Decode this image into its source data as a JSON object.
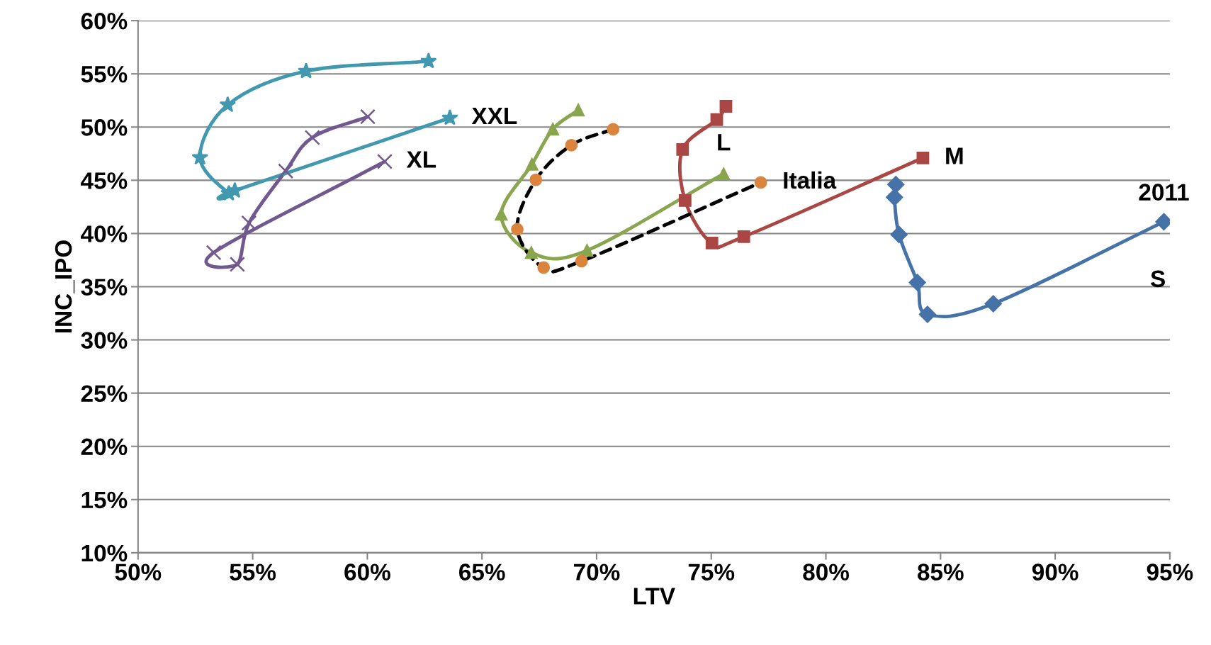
{
  "chart_data": {
    "type": "line",
    "xlabel": "LTV",
    "ylabel": "INC_IPO",
    "xlim": [
      50,
      95
    ],
    "ylim": [
      10,
      60
    ],
    "xticks": [
      {
        "value": 50,
        "label": "50%"
      },
      {
        "value": 55,
        "label": "55%"
      },
      {
        "value": 60,
        "label": "60%"
      },
      {
        "value": 65,
        "label": "65%"
      },
      {
        "value": 70,
        "label": "70%"
      },
      {
        "value": 75,
        "label": "75%"
      },
      {
        "value": 80,
        "label": "80%"
      },
      {
        "value": 85,
        "label": "85%"
      },
      {
        "value": 90,
        "label": "90%"
      },
      {
        "value": 95,
        "label": "95%"
      }
    ],
    "yticks": [
      {
        "value": 10,
        "label": "10%"
      },
      {
        "value": 15,
        "label": "15%"
      },
      {
        "value": 20,
        "label": "20%"
      },
      {
        "value": 25,
        "label": "25%"
      },
      {
        "value": 30,
        "label": "30%"
      },
      {
        "value": 35,
        "label": "35%"
      },
      {
        "value": 40,
        "label": "40%"
      },
      {
        "value": 45,
        "label": "45%"
      },
      {
        "value": 50,
        "label": "50%"
      },
      {
        "value": 55,
        "label": "55%"
      },
      {
        "value": 60,
        "label": "60%"
      }
    ],
    "grid": "y",
    "legend": false,
    "line_style": "solid",
    "series": [
      {
        "name": "S",
        "color": "#4572a7",
        "marker": "diamond",
        "x": [
          83.05,
          82.99,
          83.19,
          83.99,
          84.43,
          87.3,
          94.74
        ],
        "values": [
          44.6,
          43.4,
          39.9,
          35.4,
          32.4,
          33.4,
          41.1
        ]
      },
      {
        "name": "M",
        "color": "#aa4643",
        "marker": "square",
        "x": [
          75.64,
          75.24,
          73.75,
          73.86,
          75.03,
          76.42,
          84.23
        ],
        "values": [
          51.95,
          50.7,
          47.9,
          43.1,
          39.1,
          39.7,
          47.1
        ]
      },
      {
        "name": "L",
        "color": "#89a54e",
        "marker": "triangle",
        "x": [
          69.2,
          68.09,
          67.18,
          65.84,
          67.15,
          69.58,
          75.54
        ],
        "values": [
          51.6,
          49.8,
          46.5,
          41.8,
          38.2,
          38.4,
          45.6
        ]
      },
      {
        "name": "XL",
        "color": "#71588f",
        "marker": "cross",
        "x": [
          60.02,
          57.6,
          56.44,
          54.84,
          54.33,
          53.3,
          60.76
        ],
        "values": [
          50.97,
          49.02,
          45.87,
          40.99,
          37.1,
          38.21,
          46.76
        ]
      },
      {
        "name": "XXL",
        "color": "#4198af",
        "marker": "star",
        "x": [
          62.67,
          57.33,
          53.91,
          52.7,
          53.96,
          54.22,
          63.6
        ],
        "values": [
          56.19,
          55.25,
          52.08,
          47.15,
          43.76,
          44.03,
          50.86
        ]
      },
      {
        "name": "Italia",
        "color": "#db843d",
        "marker": "circle",
        "line_style": "dashed",
        "x": [
          70.72,
          68.9,
          67.35,
          66.54,
          67.69,
          69.34,
          77.16
        ],
        "values": [
          49.8,
          48.3,
          45.05,
          40.4,
          36.8,
          37.4,
          44.8
        ]
      }
    ],
    "annotations": [
      {
        "text": "2011",
        "x": 94.74,
        "y": 41.1
      }
    ]
  }
}
